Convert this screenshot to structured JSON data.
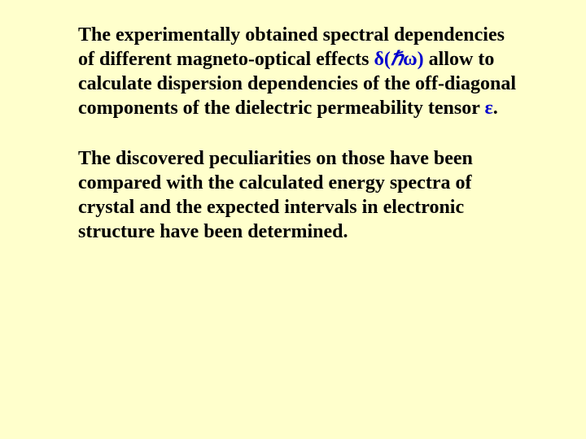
{
  "slide": {
    "background_color": "#ffffcc",
    "text_color": "#000000",
    "accent_color": "#0000cc",
    "font_family": "Times New Roman",
    "font_size_pt": 24,
    "font_weight": "bold",
    "paragraphs": [
      {
        "runs": [
          {
            "text": "The experimentally obtained spectral dependencies of different magneto-optical effects ",
            "style": "normal"
          },
          {
            "text": "δ(",
            "style": "accent"
          },
          {
            "text": "ℏ",
            "style": "accent-italic"
          },
          {
            "text": "ω)",
            "style": "accent"
          },
          {
            "text": " allow to calculate dispersion dependencies of the off-diagonal components of the dielectric permeability tensor ",
            "style": "normal"
          },
          {
            "text": "ε",
            "style": "accent"
          },
          {
            "text": ".",
            "style": "normal"
          }
        ]
      },
      {
        "runs": [
          {
            "text": "The discovered peculiarities on those have been compared with the calculated energy spectra of crystal and the expected intervals in electronic structure have been determined.",
            "style": "normal"
          }
        ]
      }
    ]
  }
}
